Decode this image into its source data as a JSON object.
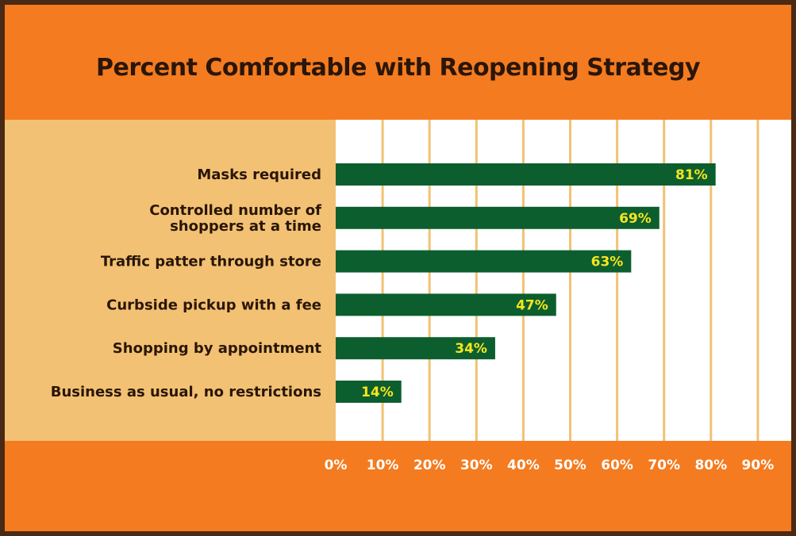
{
  "chart_data": {
    "type": "bar",
    "orientation": "horizontal",
    "title": "Percent Comfortable with Reopening Strategy",
    "categories": [
      [
        "Masks required"
      ],
      [
        "Controlled number of",
        "shoppers at a time"
      ],
      [
        "Traffic patter through store"
      ],
      [
        "Curbside pickup with a fee"
      ],
      [
        "Shopping by appointment"
      ],
      [
        "Business as usual, no restrictions"
      ]
    ],
    "values": [
      81,
      69,
      63,
      47,
      34,
      14
    ],
    "data_labels": [
      "81%",
      "69%",
      "63%",
      "47%",
      "34%",
      "14%"
    ],
    "xlim": [
      0,
      90
    ],
    "x_ticks": [
      0,
      10,
      20,
      30,
      40,
      50,
      60,
      70,
      80,
      90
    ],
    "x_tick_labels": [
      "0%",
      "10%",
      "20%",
      "30%",
      "40%",
      "50%",
      "60%",
      "70%",
      "80%",
      "90%"
    ],
    "grid": true,
    "colors": {
      "border": "#4a2a14",
      "background": "#f47b20",
      "label_panel": "#f2c173",
      "plot_panel": "#ffffff",
      "bar": "#0d5e2e",
      "bar_label": "#f7e51e",
      "gridline": "#f2c173",
      "title": "#2a1608",
      "category_text": "#2a1608",
      "tick_text": "#ffffff"
    }
  }
}
